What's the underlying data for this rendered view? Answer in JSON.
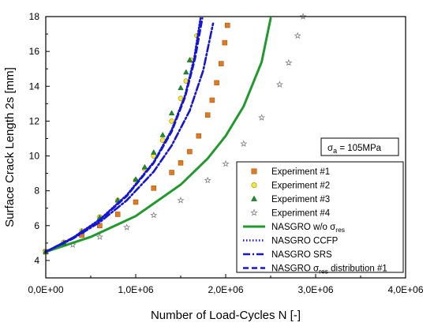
{
  "chart_data": {
    "type": "scatter",
    "xlabel": "Number of Load-Cycles N [-]",
    "ylabel": "Surface Crack Length 2s [mm]",
    "xlim": [
      0,
      4000000
    ],
    "ylim": [
      3,
      18
    ],
    "x_ticks": [
      0,
      1000000,
      2000000,
      3000000,
      4000000
    ],
    "x_tick_labels": [
      "0,0E+00",
      "1,0E+06",
      "2,0E+06",
      "3,0E+06",
      "4,0E+06"
    ],
    "y_ticks": [
      4,
      6,
      8,
      10,
      12,
      14,
      16,
      18
    ],
    "y_tick_labels": [
      "4",
      "6",
      "8",
      "10",
      "12",
      "14",
      "16",
      "18"
    ],
    "grid": false,
    "legend_position": "bottom-right",
    "annotation": {
      "prefix": "σ",
      "subscript": "a",
      "value": " = 105MPa"
    },
    "series": [
      {
        "name": "Experiment #1",
        "kind": "scatter",
        "marker": "square",
        "color": "#e07a1f",
        "x": [
          0,
          200000,
          400000,
          600000,
          800000,
          1000000,
          1200000,
          1400000,
          1500000,
          1600000,
          1700000,
          1800000,
          1850000,
          1900000,
          1950000,
          1990000,
          2020000
        ],
        "y": [
          4.5,
          4.95,
          5.45,
          6.0,
          6.65,
          7.35,
          8.15,
          9.05,
          9.6,
          10.25,
          11.15,
          12.35,
          13.2,
          14.2,
          15.3,
          16.5,
          17.5
        ]
      },
      {
        "name": "Experiment #2",
        "kind": "scatter",
        "marker": "circle",
        "color": "#f5e642",
        "x": [
          0,
          200000,
          400000,
          600000,
          800000,
          1000000,
          1100000,
          1200000,
          1300000,
          1400000,
          1500000,
          1560000,
          1620000,
          1680000
        ],
        "y": [
          4.5,
          5.05,
          5.7,
          6.5,
          7.45,
          8.6,
          9.25,
          10.0,
          10.9,
          12.0,
          13.3,
          14.3,
          15.5,
          16.9
        ]
      },
      {
        "name": "Experiment #3",
        "kind": "scatter",
        "marker": "triangle",
        "color": "#1f8a2e",
        "x": [
          0,
          200000,
          400000,
          600000,
          800000,
          1000000,
          1100000,
          1200000,
          1300000,
          1400000,
          1500000,
          1560000,
          1600000
        ],
        "y": [
          4.5,
          5.0,
          5.65,
          6.45,
          7.45,
          8.65,
          9.35,
          10.2,
          11.2,
          12.45,
          13.9,
          14.8,
          15.5
        ]
      },
      {
        "name": "Experiment #4",
        "kind": "scatter",
        "marker": "star",
        "color": "#808080",
        "x": [
          0,
          300000,
          600000,
          900000,
          1200000,
          1500000,
          1800000,
          2000000,
          2200000,
          2400000,
          2600000,
          2700000,
          2800000,
          2860000
        ],
        "y": [
          4.5,
          4.9,
          5.35,
          5.9,
          6.6,
          7.45,
          8.6,
          9.55,
          10.7,
          12.2,
          14.1,
          15.35,
          16.9,
          18.0
        ]
      },
      {
        "name": "NASGRO w/o σres",
        "kind": "line",
        "dash": "solid",
        "color": "#22992e",
        "x": [
          0,
          500000,
          1000000,
          1500000,
          1800000,
          2000000,
          2200000,
          2400000,
          2500000
        ],
        "y": [
          4.5,
          5.35,
          6.55,
          8.35,
          9.85,
          11.15,
          12.85,
          15.4,
          17.9
        ]
      },
      {
        "name": "NASGRO CCFP",
        "kind": "line",
        "dash": "dotted",
        "color": "#1515d5",
        "x": [
          0,
          300000,
          600000,
          900000,
          1200000,
          1400000,
          1550000,
          1650000,
          1720000
        ],
        "y": [
          4.5,
          5.3,
          6.35,
          7.75,
          9.65,
          11.5,
          13.5,
          15.6,
          17.9
        ]
      },
      {
        "name": "NASGRO SRS",
        "kind": "line",
        "dash": "dashdot",
        "color": "#1515d5",
        "x": [
          0,
          300000,
          600000,
          900000,
          1200000,
          1400000,
          1600000,
          1750000,
          1860000
        ],
        "y": [
          4.5,
          5.25,
          6.2,
          7.45,
          9.1,
          10.6,
          12.6,
          14.9,
          17.6
        ]
      },
      {
        "name": "NASGRO σres distribution #1",
        "kind": "line",
        "dash": "dashed",
        "color": "#1515d5",
        "x": [
          0,
          300000,
          600000,
          900000,
          1200000,
          1400000,
          1550000,
          1660000,
          1740000
        ],
        "y": [
          4.5,
          5.3,
          6.3,
          7.7,
          9.6,
          11.4,
          13.4,
          15.6,
          17.9
        ]
      }
    ]
  }
}
